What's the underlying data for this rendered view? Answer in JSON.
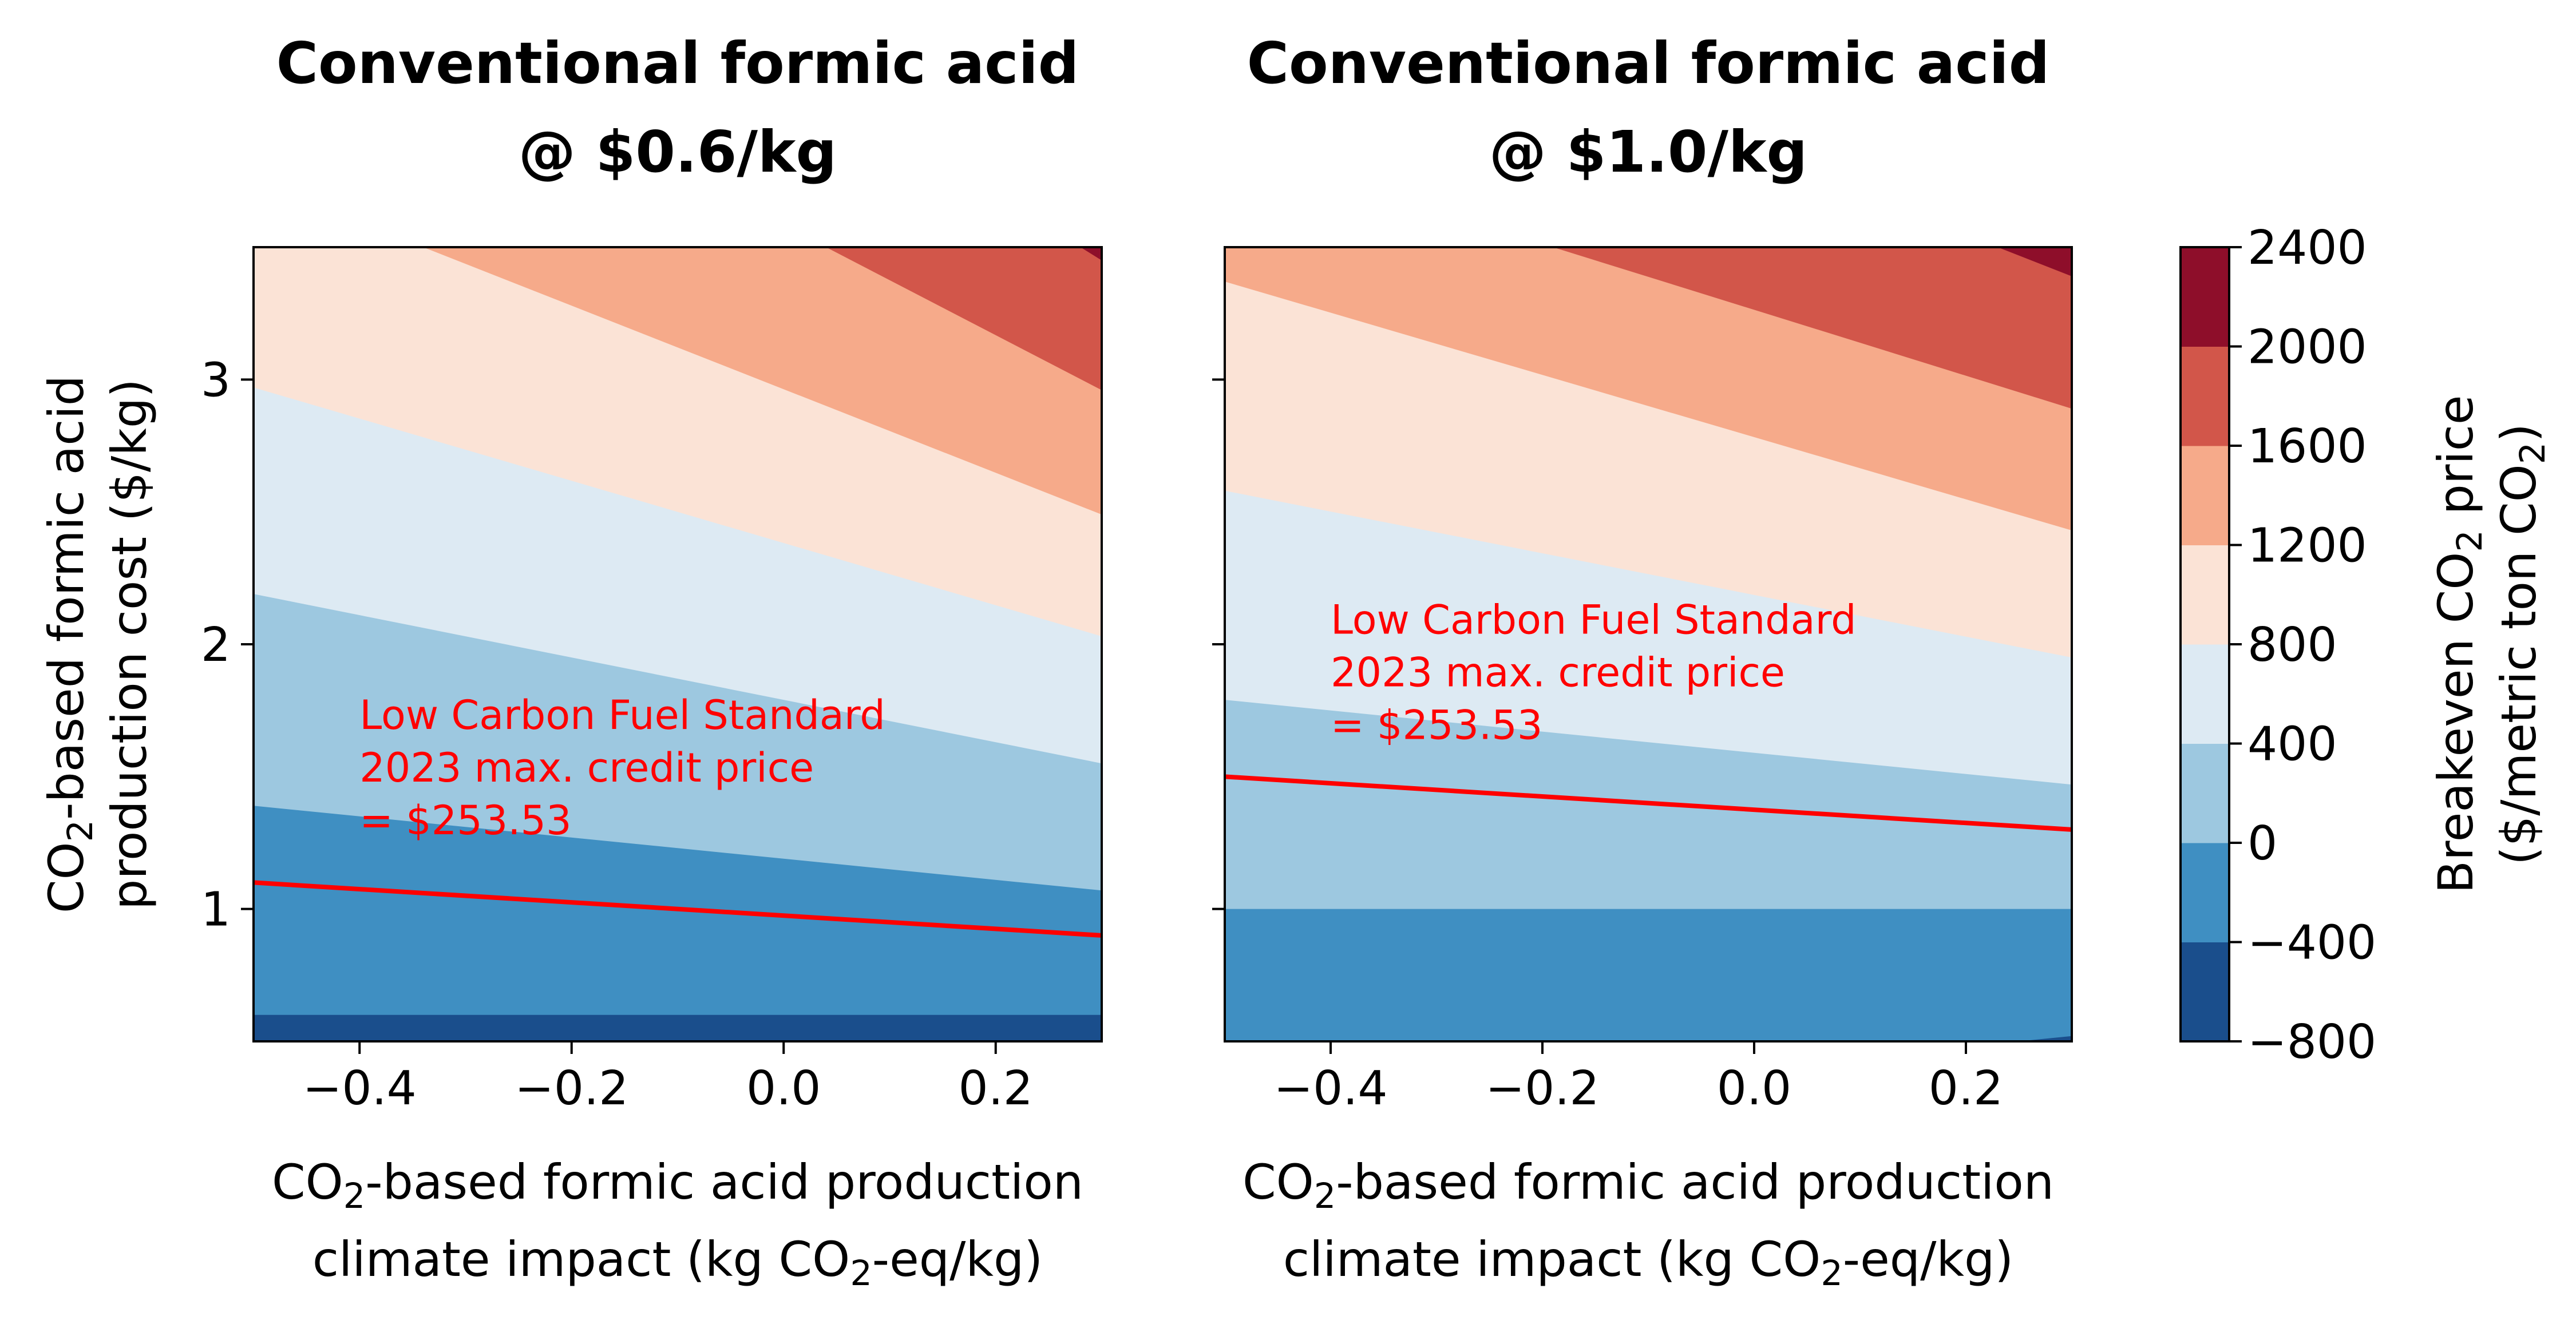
{
  "chart_data": {
    "type": "contour",
    "colorbar": {
      "label_line1": "Breakeven CO2 price",
      "label_line2": "($/metric ton CO2)",
      "levels": [
        -800,
        -400,
        0,
        400,
        800,
        1200,
        1600,
        2000,
        2400
      ],
      "tick_labels": [
        "2400",
        "2000",
        "1600",
        "1200",
        "800",
        "400",
        "0",
        "−400",
        "−800"
      ],
      "colors": [
        "#1a4e8c",
        "#3f8fc2",
        "#9dc8e0",
        "#ddeaf3",
        "#fbe3d6",
        "#f6aa8a",
        "#d2564a",
        "#8e0e2a"
      ]
    },
    "panels": [
      {
        "title_line1": "Conventional formic acid",
        "title_line2": "@ $0.6/kg",
        "conventional_price": 0.6,
        "xlabel_line1": "CO2-based formic acid production",
        "xlabel_line2": "climate impact (kg CO2-eq/kg)",
        "ylabel_line1": "CO2-based formic acid",
        "ylabel_line2": "production cost ($/kg)",
        "xlim": [
          -0.5,
          0.3
        ],
        "ylim": [
          0.5,
          3.5
        ],
        "x_ticks": [
          -0.4,
          -0.2,
          0.0,
          0.2
        ],
        "x_tick_labels": [
          "−0.4",
          "−0.2",
          "0.0",
          "0.2"
        ],
        "y_ticks": [
          1,
          2,
          3
        ],
        "y_tick_labels": [
          "1",
          "2",
          "3"
        ],
        "show_y_tick_labels": true,
        "red_line": {
          "x": [
            -0.5,
            0.3
          ],
          "y": [
            1.1,
            0.9
          ]
        },
        "annotation": {
          "lines": [
            "Low Carbon Fuel Standard",
            "2023 max. credit price",
            "= $253.53"
          ],
          "x": -0.4,
          "y": 1.68
        },
        "boundaries": [
          {
            "level": -400,
            "points": [
              [
                -0.5,
                0.6
              ],
              [
                0.3,
                0.6
              ]
            ]
          },
          {
            "level": 0,
            "points": [
              [
                -0.5,
                1.39
              ],
              [
                0.3,
                1.07
              ]
            ]
          },
          {
            "level": 400,
            "points": [
              [
                -0.5,
                2.19
              ],
              [
                0.3,
                1.55
              ]
            ]
          },
          {
            "level": 800,
            "points": [
              [
                -0.5,
                2.97
              ],
              [
                0.3,
                2.03
              ]
            ]
          },
          {
            "level": 1200,
            "points": [
              [
                -0.34,
                3.5
              ],
              [
                0.3,
                2.49
              ]
            ]
          },
          {
            "level": 1600,
            "points": [
              [
                0.04,
                3.5
              ],
              [
                0.3,
                2.96
              ]
            ]
          },
          {
            "level": 2000,
            "points": [
              [
                0.28,
                3.5
              ],
              [
                0.3,
                3.45
              ]
            ]
          }
        ]
      },
      {
        "title_line1": "Conventional formic acid",
        "title_line2": "@ $1.0/kg",
        "conventional_price": 1.0,
        "xlabel_line1": "CO2-based formic acid production",
        "xlabel_line2": "climate impact (kg CO2-eq/kg)",
        "xlim": [
          -0.5,
          0.3
        ],
        "ylim": [
          0.5,
          3.5
        ],
        "x_ticks": [
          -0.4,
          -0.2,
          0.0,
          0.2
        ],
        "x_tick_labels": [
          "−0.4",
          "−0.2",
          "0.0",
          "0.2"
        ],
        "y_ticks": [
          1,
          2,
          3
        ],
        "show_y_tick_labels": false,
        "red_line": {
          "x": [
            -0.5,
            0.3
          ],
          "y": [
            1.5,
            1.3
          ]
        },
        "annotation": {
          "lines": [
            "Low Carbon Fuel Standard",
            "2023 max. credit price",
            "= $253.53"
          ],
          "x": -0.4,
          "y": 2.04
        },
        "boundaries": [
          {
            "level": -400,
            "points": [
              [
                0.25,
                0.5
              ],
              [
                0.3,
                0.52
              ]
            ]
          },
          {
            "level": 0,
            "points": [
              [
                -0.5,
                1.0
              ],
              [
                0.3,
                1.0
              ]
            ]
          },
          {
            "level": 400,
            "points": [
              [
                -0.5,
                1.79
              ],
              [
                0.3,
                1.47
              ]
            ]
          },
          {
            "level": 800,
            "points": [
              [
                -0.5,
                2.58
              ],
              [
                0.3,
                1.95
              ]
            ]
          },
          {
            "level": 1200,
            "points": [
              [
                -0.5,
                3.37
              ],
              [
                0.3,
                2.43
              ]
            ]
          },
          {
            "level": 1600,
            "points": [
              [
                -0.19,
                3.5
              ],
              [
                0.3,
                2.89
              ]
            ]
          },
          {
            "level": 2000,
            "points": [
              [
                0.23,
                3.5
              ],
              [
                0.3,
                3.39
              ]
            ]
          }
        ]
      }
    ]
  }
}
